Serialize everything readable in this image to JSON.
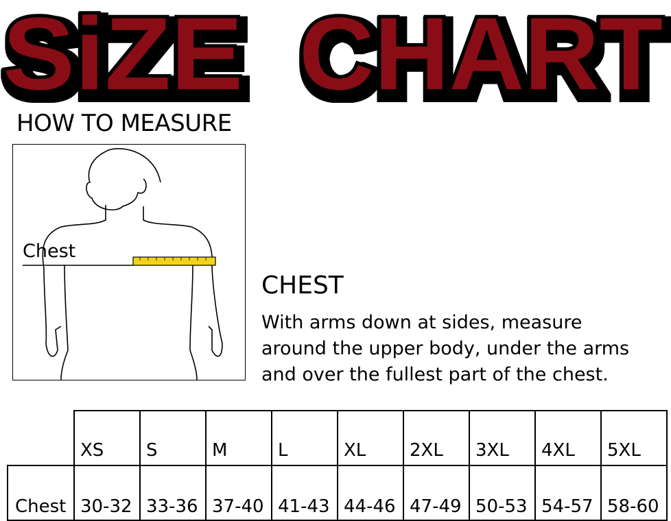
{
  "title": "SiZE CHART",
  "title_color": "#8a1016",
  "how_to_measure": "HOW TO MEASURE",
  "figure": {
    "label": "Chest",
    "tape_color": "#f2d21a"
  },
  "section": {
    "heading": "CHEST",
    "lines": [
      "With arms down at sides, measure",
      "around the upper body, under the arms",
      "and over the fullest part of the chest."
    ]
  },
  "table": {
    "sizes": [
      "XS",
      "S",
      "M",
      "L",
      "XL",
      "2XL",
      "3XL",
      "4XL",
      "5XL"
    ],
    "row_label": "Chest",
    "values": [
      "30-32",
      "33-36",
      "37-40",
      "41-43",
      "44-46",
      "47-49",
      "50-53",
      "54-57",
      "58-60"
    ]
  }
}
